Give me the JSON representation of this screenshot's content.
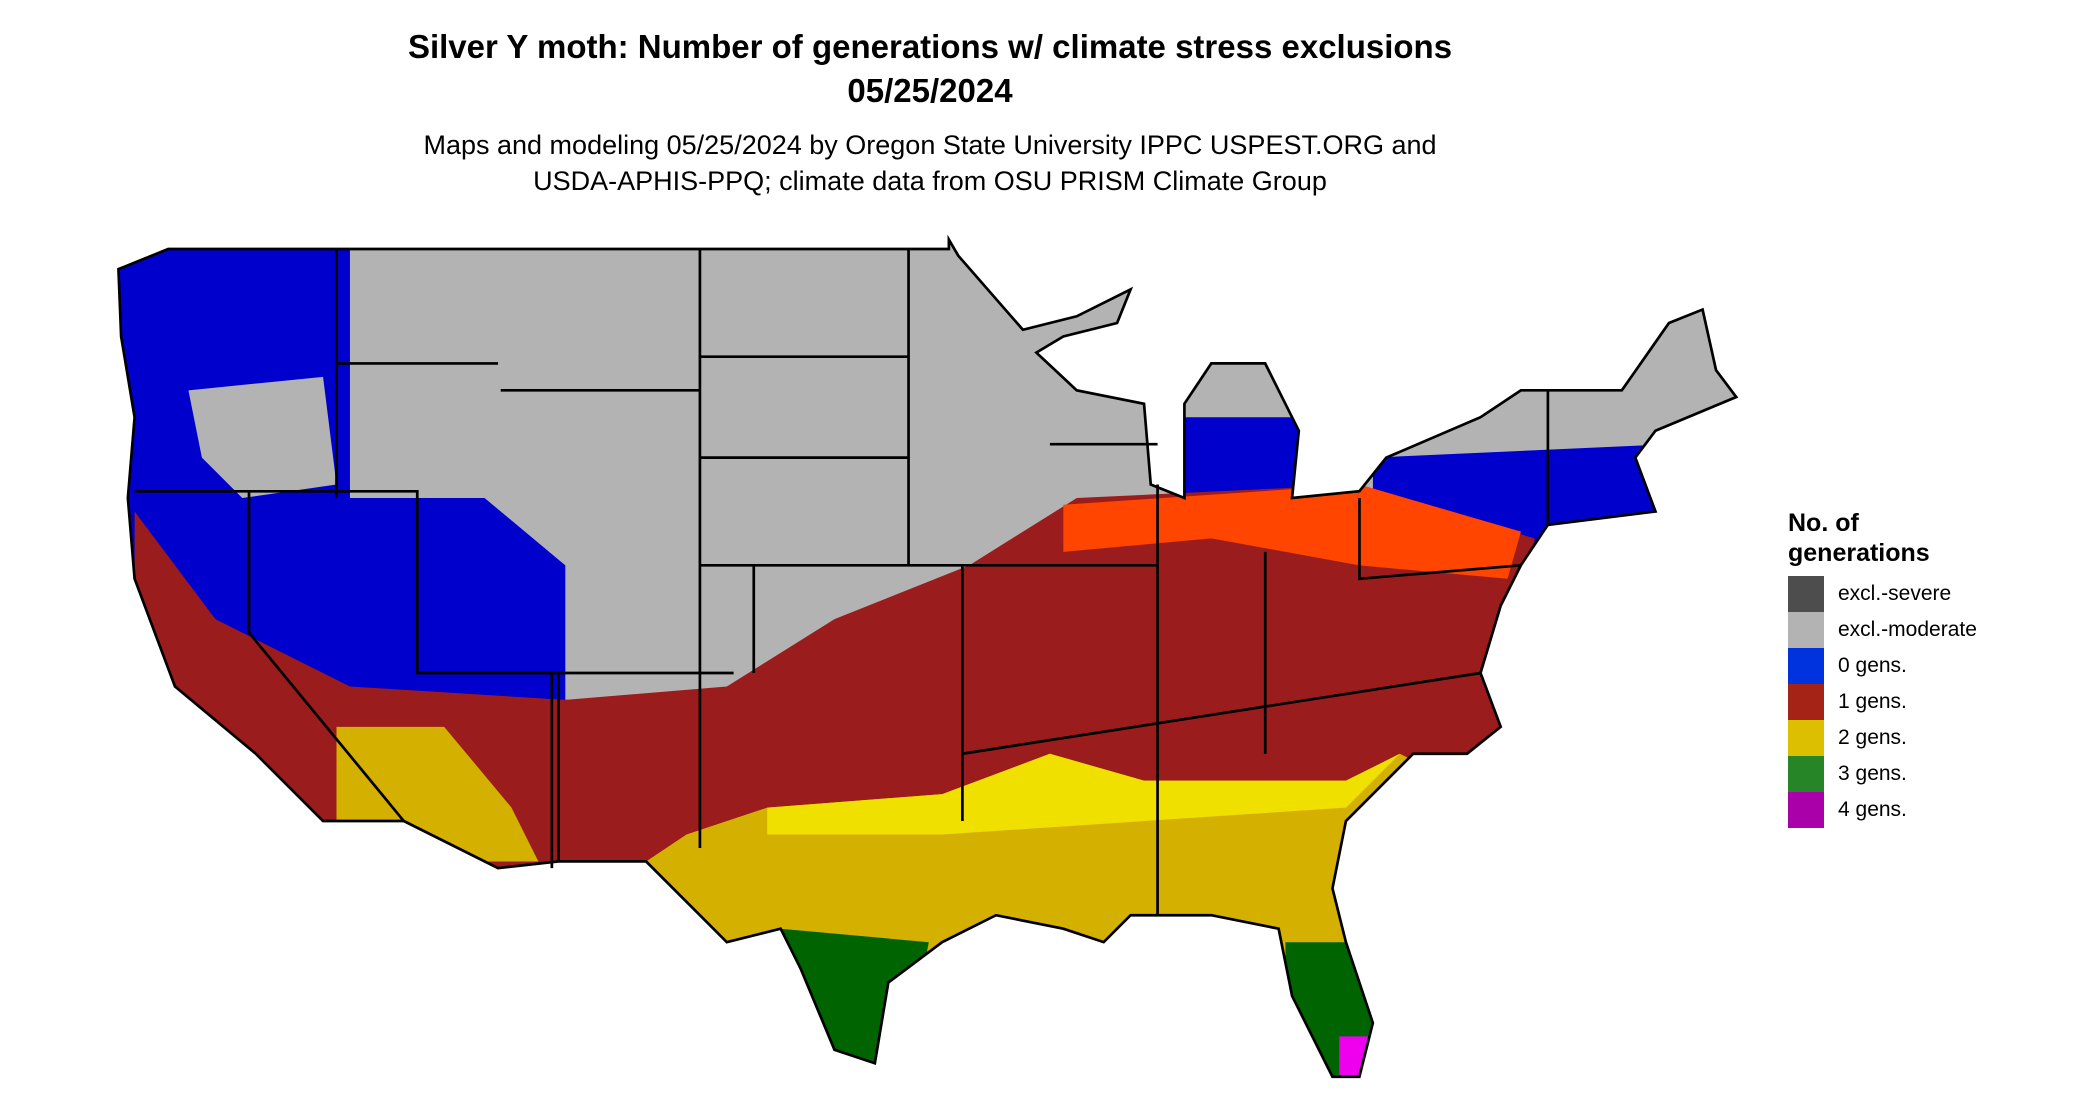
{
  "title": "Silver Y moth: Number of generations w/ climate stress exclusions",
  "date": "05/25/2024",
  "subtitle_line1": "Maps and modeling 05/25/2024 by Oregon State University IPPC USPEST.ORG and",
  "subtitle_line2": "USDA-APHIS-PPQ; climate data from OSU PRISM Climate Group",
  "legend": {
    "title_line1": "No. of",
    "title_line2": "generations",
    "items": [
      {
        "label": "excl.-severe",
        "color": "#4d4d4d"
      },
      {
        "label": "excl.-moderate",
        "color": "#b3b3b3"
      },
      {
        "label": "0 gens.",
        "color": "#0033dd"
      },
      {
        "label": "1 gens.",
        "color": "#a52216"
      },
      {
        "label": "2 gens.",
        "color": "#dcc000"
      },
      {
        "label": "3 gens.",
        "color": "#268526"
      },
      {
        "label": "4 gens.",
        "color": "#aa00aa"
      }
    ]
  }
}
